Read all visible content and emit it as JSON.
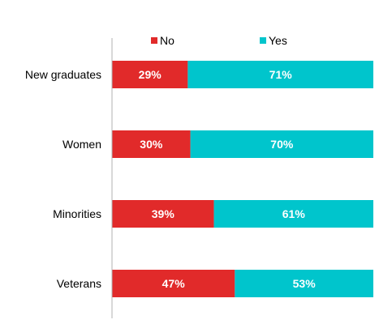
{
  "chart_data": {
    "type": "bar",
    "orientation": "horizontal",
    "stacked": true,
    "percent_stacked": true,
    "categories": [
      "New graduates",
      "Women",
      "Minorities",
      "Veterans"
    ],
    "series": [
      {
        "name": "No",
        "color": "#e12a2a",
        "values": [
          29,
          30,
          39,
          47
        ],
        "labels": [
          "29%",
          "30%",
          "39%",
          "47%"
        ]
      },
      {
        "name": "Yes",
        "color": "#00c5cc",
        "values": [
          71,
          70,
          61,
          53
        ],
        "labels": [
          "71%",
          "70%",
          "61%",
          "53%"
        ]
      }
    ],
    "xlim": [
      0,
      100
    ],
    "legend_position": "top",
    "grid": false,
    "title": "",
    "xlabel": "",
    "ylabel": ""
  }
}
